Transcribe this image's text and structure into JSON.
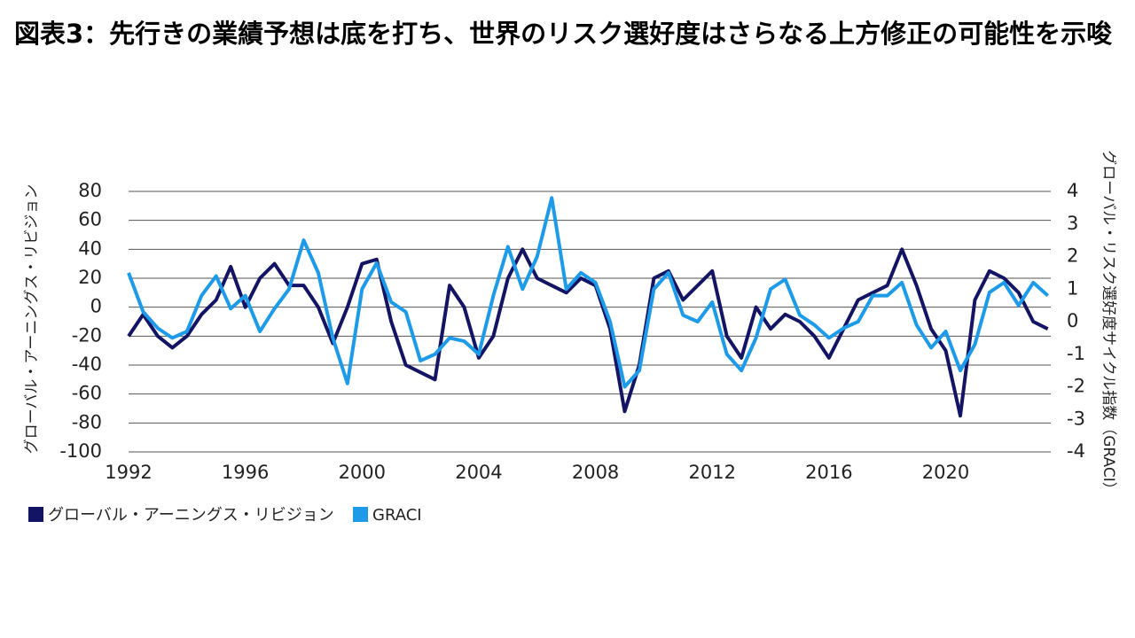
{
  "chart_data": {
    "type": "line",
    "title": "図表3：先行きの業績予想は底を打ち、世界のリスク選好度はさらなる上方修正の可能性を示唆",
    "ylabel": "グローバル・アーニングス・リビジョン",
    "y2label": "グローバル・リスク選好度サイクル指数（GRACI）",
    "x": [
      1992,
      1992.5,
      1993,
      1993.5,
      1994,
      1994.5,
      1995,
      1995.5,
      1996,
      1996.5,
      1997,
      1997.5,
      1998,
      1998.5,
      1999,
      1999.5,
      2000,
      2000.5,
      2001,
      2001.5,
      2002,
      2002.5,
      2003,
      2003.5,
      2004,
      2004.5,
      2005,
      2005.5,
      2006,
      2006.5,
      2007,
      2007.5,
      2008,
      2008.5,
      2009,
      2009.5,
      2010,
      2010.5,
      2011,
      2011.5,
      2012,
      2012.5,
      2013,
      2013.5,
      2014,
      2014.5,
      2015,
      2015.5,
      2016,
      2016.5,
      2017,
      2017.5,
      2018,
      2018.5,
      2019,
      2019.5,
      2020,
      2020.5,
      2021,
      2021.5,
      2022,
      2022.5,
      2023,
      2023.5
    ],
    "series": [
      {
        "name": "グローバル・アーニングス・リビジョン",
        "color": "#141464",
        "axis": "y",
        "values": [
          -20,
          -5,
          -20,
          -28,
          -20,
          -5,
          5,
          28,
          0,
          20,
          30,
          15,
          15,
          0,
          -25,
          0,
          30,
          33,
          -10,
          -40,
          -45,
          -50,
          15,
          0,
          -35,
          -20,
          20,
          40,
          20,
          15,
          10,
          20,
          15,
          -15,
          -72,
          -40,
          20,
          25,
          5,
          15,
          25,
          -20,
          -35,
          0,
          -15,
          -5,
          -10,
          -20,
          -35,
          -15,
          5,
          10,
          15,
          40,
          15,
          -15,
          -30,
          -75,
          5,
          25,
          20,
          10,
          -10,
          -15
        ]
      },
      {
        "name": "GRACI",
        "color": "#1e9be8",
        "axis": "y2",
        "values": [
          1.5,
          0.3,
          -0.2,
          -0.5,
          -0.3,
          0.8,
          1.4,
          0.4,
          0.8,
          -0.3,
          0.4,
          1.0,
          2.5,
          1.5,
          -0.5,
          -1.9,
          1.0,
          1.8,
          0.6,
          0.3,
          -1.2,
          -1.0,
          -0.5,
          -0.6,
          -1.0,
          0.8,
          2.3,
          1.0,
          2.0,
          3.8,
          1.0,
          1.5,
          1.2,
          0.0,
          -2.0,
          -1.5,
          1.0,
          1.5,
          0.2,
          0.0,
          0.6,
          -1.0,
          -1.5,
          -0.5,
          1.0,
          1.3,
          0.2,
          -0.1,
          -0.5,
          -0.2,
          0.0,
          0.8,
          0.8,
          1.2,
          -0.1,
          -0.8,
          -0.3,
          -1.5,
          -0.7,
          0.9,
          1.2,
          0.5,
          1.2,
          0.8
        ]
      }
    ],
    "xlim": [
      1992,
      2023.6
    ],
    "xticks": [
      1992,
      1996,
      2000,
      2004,
      2008,
      2012,
      2016,
      2020
    ],
    "ylim": [
      -100,
      80
    ],
    "yticks": [
      -100,
      -80,
      -60,
      -40,
      -20,
      0,
      20,
      40,
      60,
      80
    ],
    "y2lim": [
      -4,
      4
    ],
    "y2ticks": [
      -4,
      -3,
      -2,
      -1,
      0,
      1,
      2,
      3,
      4
    ],
    "grid": true,
    "legend": "bottom-left"
  }
}
